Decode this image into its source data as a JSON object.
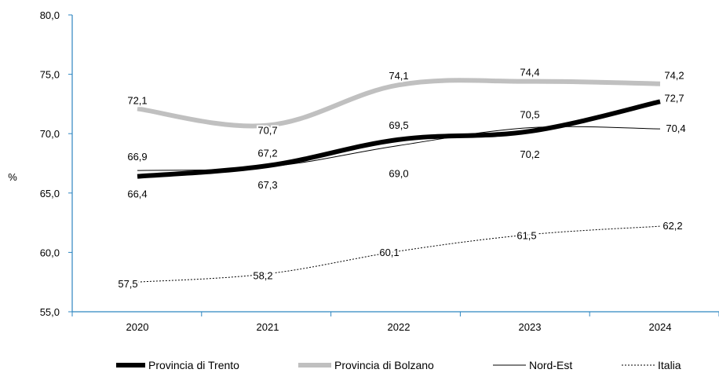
{
  "chart_data": {
    "type": "line",
    "ylabel": "%",
    "ylim": [
      55,
      80
    ],
    "yticks": [
      "55,0",
      "60,0",
      "65,0",
      "70,0",
      "75,0",
      "80,0"
    ],
    "categories": [
      "2020",
      "2021",
      "2022",
      "2023",
      "2024"
    ],
    "series": [
      {
        "name": "Provincia di Trento",
        "values": [
          66.4,
          67.3,
          69.5,
          70.2,
          72.7
        ],
        "labels": [
          "66,4",
          "67,3",
          "69,5",
          "70,2",
          "72,7"
        ],
        "color": "#000000",
        "style": "thick"
      },
      {
        "name": "Provincia di Bolzano",
        "values": [
          72.1,
          70.7,
          74.1,
          74.4,
          74.2
        ],
        "labels": [
          "72,1",
          "70,7",
          "74,1",
          "74,4",
          "74,2"
        ],
        "color": "#c0c0c0",
        "style": "thick"
      },
      {
        "name": "Nord-Est",
        "values": [
          66.9,
          67.2,
          69.0,
          70.5,
          70.4
        ],
        "labels": [
          "66,9",
          "67,2",
          "69,0",
          "70,5",
          "70,4"
        ],
        "color": "#000000",
        "style": "thin"
      },
      {
        "name": "Italia",
        "values": [
          57.5,
          58.2,
          60.1,
          61.5,
          62.2
        ],
        "labels": [
          "57,5",
          "58,2",
          "60,1",
          "61,5",
          "62,2"
        ],
        "color": "#000000",
        "style": "dotted"
      }
    ],
    "legend_position": "bottom",
    "grid": false
  }
}
